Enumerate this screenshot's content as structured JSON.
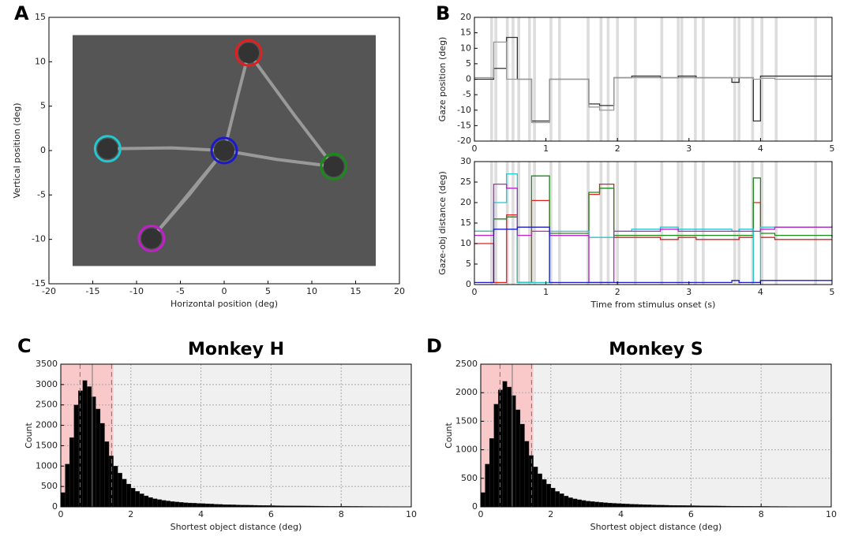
{
  "chart_data": [
    {
      "type": "scatter",
      "panel_label": "A",
      "xlabel": "Horizontal position (deg)",
      "ylabel": "Vertical position (deg)",
      "xlim": [
        -20,
        20
      ],
      "ylim": [
        -15,
        15
      ],
      "xticks": [
        -20,
        -15,
        -10,
        -5,
        0,
        5,
        10,
        15,
        20
      ],
      "yticks": [
        -15,
        -10,
        -5,
        0,
        5,
        10,
        15
      ],
      "image_extent": [
        -17.3,
        17.3,
        -13,
        13
      ],
      "image_color": "#555555",
      "path": {
        "color": "#aaaaaa",
        "x": [
          -13.3,
          -6,
          0,
          1.5,
          2.8,
          8,
          12.5,
          6,
          0,
          -4,
          -8.3,
          -5,
          0
        ],
        "y": [
          0.2,
          0.3,
          0,
          6,
          11,
          4,
          -1.8,
          -1,
          0,
          -5,
          -9.9,
          -6,
          0
        ]
      },
      "objects": {
        "x": [
          -13.3,
          0,
          2.8,
          12.5,
          -8.3
        ],
        "y": [
          0.2,
          0,
          11,
          -1.8,
          -9.9
        ],
        "colors": [
          "#22c8d0",
          "#1a1acc",
          "#e02020",
          "#1a8a1a",
          "#c020c8"
        ]
      }
    },
    {
      "type": "line",
      "panel_label": "B",
      "ylabel": "Gaze position (deg)",
      "step": true,
      "xlim": [
        0,
        5
      ],
      "ylim": [
        -20,
        20
      ],
      "xticks": [
        0,
        1,
        2,
        3,
        4,
        5
      ],
      "yticks": [
        -20,
        -15,
        -10,
        -5,
        0,
        5,
        10,
        15,
        20
      ],
      "shaded_spans": [
        [
          0.22,
          0.26
        ],
        [
          0.28,
          0.32
        ],
        [
          0.44,
          0.48
        ],
        [
          0.52,
          0.56
        ],
        [
          0.6,
          0.64
        ],
        [
          0.75,
          0.79
        ],
        [
          0.82,
          0.86
        ],
        [
          1.05,
          1.09
        ],
        [
          1.17,
          1.21
        ],
        [
          1.57,
          1.61
        ],
        [
          1.75,
          1.79
        ],
        [
          1.85,
          1.89
        ],
        [
          1.98,
          2.02
        ],
        [
          2.23,
          2.27
        ],
        [
          2.6,
          2.64
        ],
        [
          2.83,
          2.87
        ],
        [
          2.88,
          2.92
        ],
        [
          3.07,
          3.11
        ],
        [
          3.18,
          3.22
        ],
        [
          3.62,
          3.66
        ],
        [
          3.68,
          3.72
        ],
        [
          3.87,
          3.91
        ],
        [
          4.0,
          4.04
        ],
        [
          4.2,
          4.24
        ],
        [
          4.75,
          4.79
        ]
      ],
      "shade_color": "#dddddd",
      "x": [
        0,
        0.27,
        0.45,
        0.6,
        0.8,
        1.05,
        1.6,
        1.75,
        1.95,
        2.2,
        2.6,
        2.85,
        3.1,
        3.6,
        3.7,
        3.9,
        4.0,
        4.2,
        5
      ],
      "series": [
        {
          "color": "#333333",
          "values": [
            0,
            3.5,
            13.5,
            0,
            -13.5,
            0,
            -8,
            -8.5,
            0.5,
            1,
            0.5,
            1,
            0.5,
            -1,
            0.5,
            -13.5,
            1,
            1,
            1
          ]
        },
        {
          "color": "#999999",
          "values": [
            0.5,
            12,
            0,
            0,
            -14,
            0,
            -9,
            -10,
            0.5,
            0.5,
            0.5,
            0.5,
            0.5,
            0.5,
            0.5,
            0,
            0.3,
            0,
            0
          ]
        }
      ]
    },
    {
      "type": "line",
      "xlabel": "Time from stimulus onset (s)",
      "ylabel": "Gaze-obj distance (deg)",
      "step": true,
      "xlim": [
        0,
        5
      ],
      "ylim": [
        0,
        30
      ],
      "xticks": [
        0,
        1,
        2,
        3,
        4,
        5
      ],
      "yticks": [
        0,
        5,
        10,
        15,
        20,
        25,
        30
      ],
      "shaded_spans": [
        [
          0.22,
          0.26
        ],
        [
          0.28,
          0.32
        ],
        [
          0.44,
          0.48
        ],
        [
          0.52,
          0.56
        ],
        [
          0.6,
          0.64
        ],
        [
          0.75,
          0.79
        ],
        [
          0.82,
          0.86
        ],
        [
          1.05,
          1.09
        ],
        [
          1.17,
          1.21
        ],
        [
          1.57,
          1.61
        ],
        [
          1.75,
          1.79
        ],
        [
          1.85,
          1.89
        ],
        [
          1.98,
          2.02
        ],
        [
          2.23,
          2.27
        ],
        [
          2.6,
          2.64
        ],
        [
          2.83,
          2.87
        ],
        [
          2.88,
          2.92
        ],
        [
          3.07,
          3.11
        ],
        [
          3.18,
          3.22
        ],
        [
          3.62,
          3.66
        ],
        [
          3.68,
          3.72
        ],
        [
          3.87,
          3.91
        ],
        [
          4.0,
          4.04
        ],
        [
          4.2,
          4.24
        ],
        [
          4.75,
          4.79
        ]
      ],
      "shade_color": "#dddddd",
      "x": [
        0,
        0.27,
        0.45,
        0.6,
        0.8,
        1.05,
        1.6,
        1.75,
        1.95,
        2.2,
        2.6,
        2.85,
        3.1,
        3.6,
        3.7,
        3.9,
        4.0,
        4.2,
        5
      ],
      "series": [
        {
          "color": "#e02020",
          "values": [
            10,
            0.5,
            17,
            0.5,
            20.5,
            12,
            22,
            24.5,
            11.5,
            11.5,
            11,
            11.5,
            11,
            11,
            11.5,
            20,
            11.5,
            11,
            11
          ]
        },
        {
          "color": "#1a8a1a",
          "values": [
            13,
            16,
            16.5,
            0.5,
            26.5,
            12.5,
            22.5,
            23.5,
            12,
            12,
            12,
            12,
            12,
            12,
            12,
            26,
            12.5,
            12,
            11.5
          ]
        },
        {
          "color": "#22c8d0",
          "values": [
            13,
            20,
            27,
            0.5,
            0.5,
            13,
            11.5,
            11.5,
            13,
            13.5,
            14,
            13.5,
            13.5,
            13,
            13.5,
            0.5,
            14,
            14,
            14.5
          ]
        },
        {
          "color": "#c020c8",
          "values": [
            12,
            24.5,
            23.5,
            12,
            13,
            12,
            0.5,
            0.5,
            13,
            13,
            13.5,
            13,
            13,
            13,
            13,
            13,
            13.5,
            14,
            14
          ]
        },
        {
          "color": "#1a1acc",
          "values": [
            0.5,
            13.5,
            13.5,
            14,
            14,
            0.5,
            0.5,
            0.5,
            0.5,
            0.5,
            0.5,
            0.5,
            0.5,
            1,
            0.5,
            0.5,
            1,
            1,
            1
          ]
        }
      ]
    },
    {
      "type": "histogram",
      "panel_label": "C",
      "title": "Monkey H",
      "xlabel": "Shortest object distance (deg)",
      "ylabel": "Count",
      "grid": true,
      "xlim": [
        0,
        10
      ],
      "ylim": [
        0,
        3500
      ],
      "xticks": [
        0,
        2,
        4,
        6,
        8,
        10
      ],
      "yticks": [
        0,
        500,
        1000,
        1500,
        2000,
        2500,
        3000,
        3500
      ],
      "color": "#000000",
      "highlight_span": [
        0,
        1.5
      ],
      "highlight_color": "#f9c8c8",
      "background_color": "#f0f0f0",
      "markers": [
        {
          "value": 0.55,
          "style": "dashed"
        },
        {
          "value": 0.9,
          "style": "solid"
        },
        {
          "value": 1.45,
          "style": "dashed"
        }
      ],
      "bins": [
        0,
        0.125,
        0.25,
        0.375,
        0.5,
        0.625,
        0.75,
        0.875,
        1,
        1.125,
        1.25,
        1.375,
        1.5,
        1.625,
        1.75,
        1.875,
        2,
        2.125,
        2.25,
        2.375,
        2.5,
        2.625,
        2.75,
        2.875,
        3,
        3.125,
        3.25,
        3.375,
        3.5,
        3.625,
        3.75,
        3.875,
        4,
        4.125,
        4.25,
        4.375,
        4.5,
        4.625,
        4.75,
        4.875,
        5,
        5.125,
        5.25,
        5.375,
        5.5,
        5.625,
        5.75,
        5.875,
        6,
        6.125,
        6.25,
        6.375,
        6.5,
        6.625,
        6.75,
        6.875,
        7,
        7.125,
        7.25,
        7.375,
        7.5,
        7.625,
        7.75,
        7.875,
        8,
        8.125,
        8.25,
        8.375,
        8.5,
        8.625,
        8.75,
        8.875,
        9,
        9.125,
        9.25,
        9.375,
        9.5,
        9.625,
        9.75,
        9.875,
        10
      ],
      "values": [
        350,
        1050,
        1700,
        2500,
        2850,
        3100,
        2950,
        2700,
        2400,
        2050,
        1600,
        1250,
        1000,
        830,
        680,
        560,
        460,
        380,
        320,
        270,
        230,
        200,
        180,
        160,
        145,
        130,
        120,
        110,
        100,
        95,
        90,
        85,
        80,
        75,
        70,
        65,
        60,
        55,
        52,
        50,
        47,
        45,
        42,
        40,
        38,
        36,
        34,
        32,
        30,
        28,
        27,
        26,
        25,
        24,
        23,
        22,
        21,
        20,
        19,
        18,
        17,
        16,
        15,
        15,
        14,
        13,
        12,
        12,
        11,
        10,
        10,
        9,
        9,
        8,
        8,
        7,
        7,
        6,
        6,
        5
      ]
    },
    {
      "type": "histogram",
      "panel_label": "D",
      "title": "Monkey S",
      "xlabel": "Shortest object distance (deg)",
      "ylabel": "Count",
      "grid": true,
      "xlim": [
        0,
        10
      ],
      "ylim": [
        0,
        2500
      ],
      "xticks": [
        0,
        2,
        4,
        6,
        8,
        10
      ],
      "yticks": [
        0,
        500,
        1000,
        1500,
        2000,
        2500
      ],
      "color": "#000000",
      "highlight_span": [
        0,
        1.5
      ],
      "highlight_color": "#f9c8c8",
      "background_color": "#f0f0f0",
      "markers": [
        {
          "value": 0.55,
          "style": "dashed"
        },
        {
          "value": 0.9,
          "style": "solid"
        },
        {
          "value": 1.45,
          "style": "dashed"
        }
      ],
      "bins": [
        0,
        0.125,
        0.25,
        0.375,
        0.5,
        0.625,
        0.75,
        0.875,
        1,
        1.125,
        1.25,
        1.375,
        1.5,
        1.625,
        1.75,
        1.875,
        2,
        2.125,
        2.25,
        2.375,
        2.5,
        2.625,
        2.75,
        2.875,
        3,
        3.125,
        3.25,
        3.375,
        3.5,
        3.625,
        3.75,
        3.875,
        4,
        4.125,
        4.25,
        4.375,
        4.5,
        4.625,
        4.75,
        4.875,
        5,
        5.125,
        5.25,
        5.375,
        5.5,
        5.625,
        5.75,
        5.875,
        6,
        6.125,
        6.25,
        6.375,
        6.5,
        6.625,
        6.75,
        6.875,
        7,
        7.125,
        7.25,
        7.375,
        7.5,
        7.625,
        7.75,
        7.875,
        8,
        8.125,
        8.25,
        8.375,
        8.5,
        8.625,
        8.75,
        8.875,
        9,
        9.125,
        9.25,
        9.375,
        9.5,
        9.625,
        9.75,
        9.875,
        10
      ],
      "values": [
        250,
        750,
        1200,
        1800,
        2050,
        2200,
        2100,
        1950,
        1700,
        1450,
        1150,
        900,
        700,
        580,
        480,
        400,
        330,
        270,
        230,
        190,
        160,
        140,
        125,
        112,
        100,
        92,
        85,
        78,
        72,
        67,
        62,
        58,
        54,
        50,
        47,
        44,
        41,
        38,
        36,
        34,
        32,
        30,
        28,
        26,
        25,
        24,
        23,
        22,
        21,
        20,
        19,
        18,
        17,
        16,
        15,
        14,
        13,
        12,
        12,
        11,
        10,
        10,
        9,
        9,
        8,
        8,
        7,
        7,
        6,
        6,
        5,
        5,
        4,
        4,
        3,
        3,
        3,
        2,
        2,
        2
      ]
    }
  ]
}
